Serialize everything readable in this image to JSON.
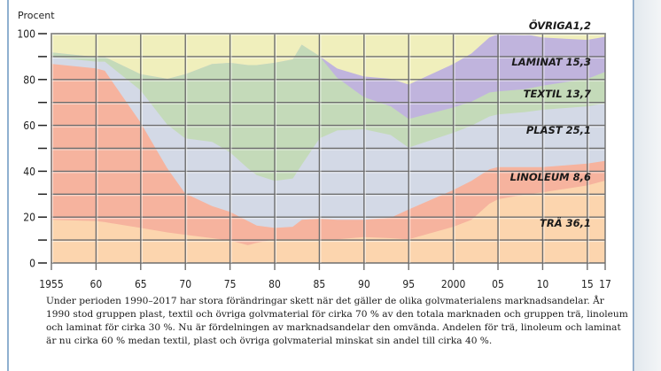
{
  "chart_data": {
    "type": "area",
    "stacked": true,
    "title": "",
    "xlabel": "",
    "ylabel": "Procent",
    "xlim": [
      1955,
      2017
    ],
    "ylim": [
      0,
      100
    ],
    "grid": true,
    "x_ticks": [
      1955,
      1960,
      1965,
      1970,
      1975,
      1980,
      1985,
      1990,
      1995,
      2000,
      2005,
      2010,
      2015,
      2017
    ],
    "x_tick_labels": [
      "1955",
      "60",
      "65",
      "70",
      "75",
      "80",
      "85",
      "90",
      "95",
      "2000",
      "05",
      "10",
      "15",
      "17"
    ],
    "y_ticks": [
      0,
      10,
      20,
      30,
      40,
      50,
      60,
      70,
      80,
      90,
      100
    ],
    "y_tick_labels": [
      "0",
      "",
      "20",
      "",
      "40",
      "",
      "60",
      "",
      "80",
      "",
      "100"
    ],
    "x": [
      1955,
      1960,
      1961,
      1965,
      1968,
      1970,
      1973,
      1975,
      1977,
      1978,
      1980,
      1982,
      1983,
      1985,
      1987,
      1990,
      1993,
      1995,
      2000,
      2002,
      2004,
      2005,
      2008,
      2010,
      2015,
      2017
    ],
    "series": [
      {
        "name": "TRÄ",
        "label": "TRÄ 36,1",
        "color": "#fcd5ae",
        "values": [
          19,
          18.5,
          18,
          15.5,
          13.5,
          12.5,
          11,
          10,
          8,
          9,
          10.5,
          10.5,
          10.5,
          10.5,
          10.5,
          11.5,
          11,
          10.5,
          16,
          19,
          26,
          28,
          30,
          31,
          34,
          36.1
        ]
      },
      {
        "name": "LINOLEUM",
        "label": "LINOLEUM 8,6",
        "color": "#f6b39e",
        "values": [
          68,
          66.5,
          66,
          46,
          28,
          18,
          14,
          12.5,
          10.5,
          7.5,
          5,
          5.5,
          8.5,
          9,
          8.5,
          7.5,
          9,
          13,
          16,
          17,
          15,
          14,
          12,
          11,
          9.5,
          8.6
        ]
      },
      {
        "name": "PLAST",
        "label": "PLAST 25,1",
        "color": "#d3d9e6",
        "values": [
          3,
          3,
          4,
          14,
          19,
          24,
          28,
          26,
          23,
          22,
          20.5,
          21,
          24,
          35,
          39,
          39.5,
          36,
          27,
          25,
          24,
          23,
          23,
          24,
          25,
          25,
          25.1
        ]
      },
      {
        "name": "TEXTIL",
        "label": "TEXTIL 13,7",
        "color": "#c4dab9",
        "values": [
          2,
          2,
          2,
          7,
          20,
          28,
          34,
          39,
          45,
          48,
          51.5,
          52,
          52.5,
          36,
          23,
          14,
          12.5,
          12.5,
          11,
          10.5,
          10.5,
          10,
          10,
          10.5,
          12,
          13.7
        ]
      },
      {
        "name": "LAMINAT",
        "label": "LAMINAT 15,3",
        "color": "#c0b4dd",
        "values": [
          0,
          0,
          0,
          0,
          0,
          0,
          0,
          0,
          0,
          0,
          0,
          0,
          0,
          0,
          4,
          9,
          12,
          15,
          19,
          21,
          24,
          25,
          24.5,
          21,
          17,
          15.3
        ]
      },
      {
        "name": "ÖVRIGA",
        "label": "ÖVRIGA1,2",
        "color": "#f0efbc",
        "values": [
          8,
          10,
          10,
          17.5,
          19.5,
          17.5,
          13,
          12.5,
          13.5,
          13,
          12.5,
          11,
          4.5,
          9.5,
          15,
          18.5,
          19.5,
          22,
          13,
          8.5,
          1.5,
          0,
          -0.5,
          1.5,
          2.5,
          1.2
        ]
      }
    ]
  },
  "caption": {
    "text": "Under perioden 1990–2017 har stora förändringar skett när det gäller de olika golvmaterialens marknadsandelar. År 1990 stod gruppen plast, textil och övriga golvmaterial för cirka 70 % av den totala marknaden och gruppen trä, linoleum och laminat för cirka 30 %. Nu är fördelningen av marknadsandelar den omvända. Andelen för trä, linoleum och laminat är nu cirka 60 % medan textil, plast och övriga golvmaterial minskat sin andel till cirka 40 %."
  }
}
